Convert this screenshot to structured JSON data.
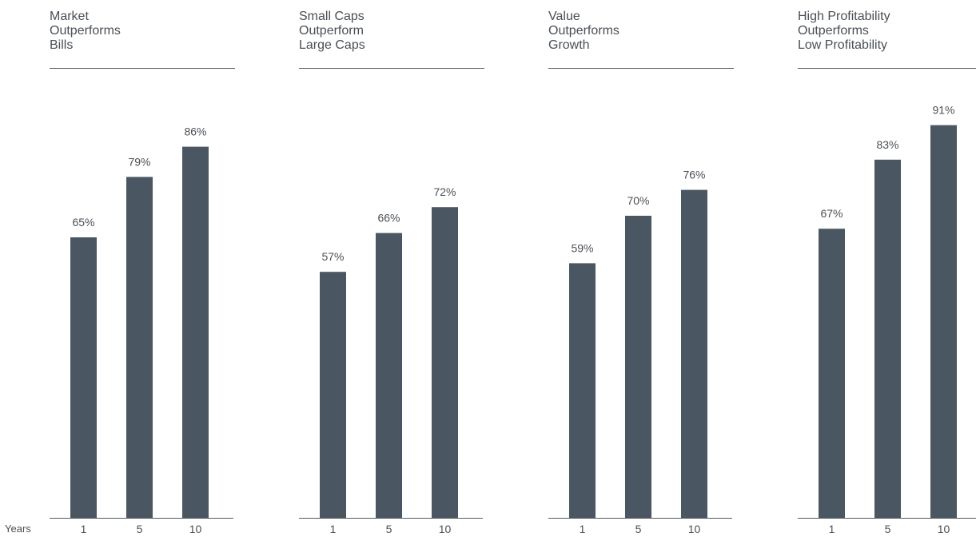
{
  "x_axis_label": "Years",
  "colors": {
    "bar": "#4a5762",
    "text": "#4a4f55",
    "axis": "#555b61"
  },
  "chart_data": [
    {
      "type": "bar",
      "title": "Market\nOutperforms\nBills",
      "categories": [
        "1",
        "5",
        "10"
      ],
      "values": [
        65,
        79,
        86
      ],
      "labels": [
        "65%",
        "79%",
        "86%"
      ],
      "ylim": [
        0,
        100
      ]
    },
    {
      "type": "bar",
      "title": "Small Caps\nOutperform\nLarge Caps",
      "categories": [
        "1",
        "5",
        "10"
      ],
      "values": [
        57,
        66,
        72
      ],
      "labels": [
        "57%",
        "66%",
        "72%"
      ],
      "ylim": [
        0,
        100
      ]
    },
    {
      "type": "bar",
      "title": "Value\nOutperforms\nGrowth",
      "categories": [
        "1",
        "5",
        "10"
      ],
      "values": [
        59,
        70,
        76
      ],
      "labels": [
        "59%",
        "70%",
        "76%"
      ],
      "ylim": [
        0,
        100
      ]
    },
    {
      "type": "bar",
      "title": "High Profitability\nOutperforms\nLow Profitability",
      "categories": [
        "1",
        "5",
        "10"
      ],
      "values": [
        67,
        83,
        91
      ],
      "labels": [
        "67%",
        "83%",
        "91%"
      ],
      "ylim": [
        0,
        100
      ]
    }
  ]
}
